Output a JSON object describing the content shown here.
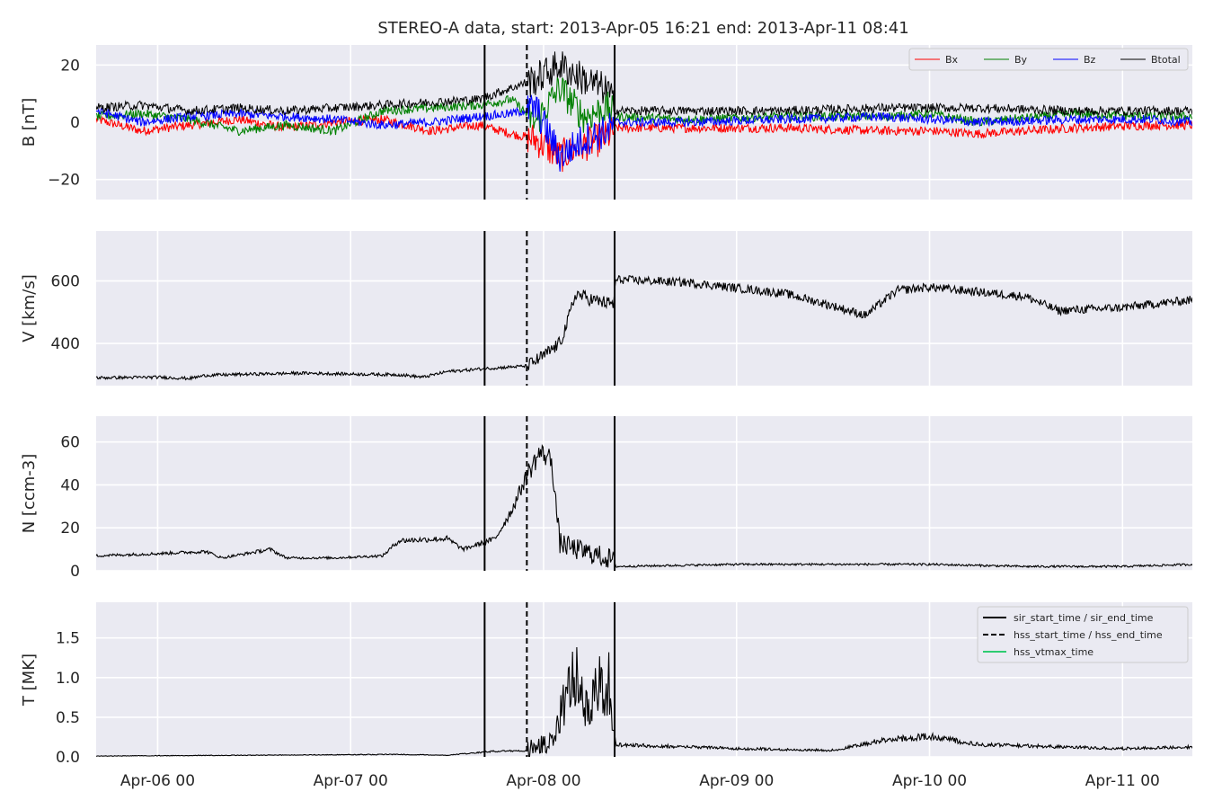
{
  "figure": {
    "title": "STEREO-A data, start: 2013-Apr-05 16:21  end: 2013-Apr-11 08:41",
    "x_start": "2013-04-05T16:21",
    "x_end": "2013-04-11T08:41",
    "x_ticks": [
      {
        "time": "2013-04-06T00:00",
        "label": "Apr-06 00"
      },
      {
        "time": "2013-04-07T00:00",
        "label": "Apr-07 00"
      },
      {
        "time": "2013-04-08T00:00",
        "label": "Apr-08 00"
      },
      {
        "time": "2013-04-09T00:00",
        "label": "Apr-09 00"
      },
      {
        "time": "2013-04-10T00:00",
        "label": "Apr-10 00"
      },
      {
        "time": "2013-04-11T00:00",
        "label": "Apr-11 00"
      }
    ],
    "event_lines": [
      {
        "time": "2013-04-07T16:40",
        "style": "solid",
        "role": "sir_start_time"
      },
      {
        "time": "2013-04-07T21:55",
        "style": "dashed",
        "role": "hss_start_time"
      },
      {
        "time": "2013-04-08T08:50",
        "style": "solid",
        "role": "sir_end_time"
      }
    ],
    "event_legend": [
      {
        "label": "sir_start_time / sir_end_time",
        "color": "#000000",
        "style": "solid"
      },
      {
        "label": "hss_start_time / hss_end_time",
        "color": "#000000",
        "style": "dashed"
      },
      {
        "label": "hss_vtmax_time",
        "color": "#2ecc71",
        "style": "solid"
      }
    ],
    "colors": {
      "background": "#eaeaf2",
      "grid": "#ffffff",
      "Bx": "#ff0000",
      "By": "#008000",
      "Bz": "#0000ff",
      "Btotal": "#000000",
      "line": "#000000"
    }
  },
  "chart_data": [
    {
      "type": "line",
      "ylabel": "B [nT]",
      "ylim": [
        -27,
        27
      ],
      "yticks": [
        {
          "v": -20,
          "label": "−20"
        },
        {
          "v": 0,
          "label": "0"
        },
        {
          "v": 20,
          "label": "20"
        }
      ],
      "legend_position": "top-right",
      "series": [
        {
          "name": "Bx",
          "color": "#ff0000",
          "points": [
            [
              "2013-04-05T16:21",
              1
            ],
            [
              "2013-04-05T22:00",
              -3
            ],
            [
              "2013-04-06T04:00",
              -1
            ],
            [
              "2013-04-06T10:00",
              1
            ],
            [
              "2013-04-06T16:00",
              -2
            ],
            [
              "2013-04-06T22:00",
              0
            ],
            [
              "2013-04-07T04:00",
              1
            ],
            [
              "2013-04-07T10:00",
              -3
            ],
            [
              "2013-04-07T16:00",
              -1
            ],
            [
              "2013-04-07T20:00",
              -4
            ],
            [
              "2013-04-07T23:00",
              -6
            ],
            [
              "2013-04-08T02:00",
              -12
            ],
            [
              "2013-04-08T05:00",
              -8
            ],
            [
              "2013-04-08T08:00",
              -5
            ],
            [
              "2013-04-08T09:00",
              -2
            ],
            [
              "2013-04-08T18:00",
              -2
            ],
            [
              "2013-04-09T06:00",
              -2
            ],
            [
              "2013-04-09T18:00",
              -3
            ],
            [
              "2013-04-10T00:00",
              -3
            ],
            [
              "2013-04-10T06:00",
              -4
            ],
            [
              "2013-04-10T18:00",
              -2
            ],
            [
              "2013-04-11T04:00",
              -1
            ],
            [
              "2013-04-11T08:41",
              -1
            ]
          ]
        },
        {
          "name": "By",
          "color": "#008000",
          "points": [
            [
              "2013-04-05T16:21",
              2
            ],
            [
              "2013-04-05T22:00",
              3
            ],
            [
              "2013-04-06T04:00",
              1
            ],
            [
              "2013-04-06T10:00",
              -3
            ],
            [
              "2013-04-06T16:00",
              -1
            ],
            [
              "2013-04-06T22:00",
              -3
            ],
            [
              "2013-04-07T04:00",
              4
            ],
            [
              "2013-04-07T10:00",
              5
            ],
            [
              "2013-04-07T16:00",
              6
            ],
            [
              "2013-04-07T20:00",
              8
            ],
            [
              "2013-04-07T23:00",
              0
            ],
            [
              "2013-04-08T02:00",
              12
            ],
            [
              "2013-04-08T05:00",
              2
            ],
            [
              "2013-04-08T08:00",
              5
            ],
            [
              "2013-04-08T09:00",
              2
            ],
            [
              "2013-04-08T18:00",
              1
            ],
            [
              "2013-04-09T06:00",
              2
            ],
            [
              "2013-04-09T18:00",
              2
            ],
            [
              "2013-04-10T00:00",
              3
            ],
            [
              "2013-04-10T06:00",
              0
            ],
            [
              "2013-04-10T18:00",
              3
            ],
            [
              "2013-04-11T04:00",
              2
            ],
            [
              "2013-04-11T08:41",
              2
            ]
          ]
        },
        {
          "name": "Bz",
          "color": "#0000ff",
          "points": [
            [
              "2013-04-05T16:21",
              4
            ],
            [
              "2013-04-05T22:00",
              0
            ],
            [
              "2013-04-06T04:00",
              2
            ],
            [
              "2013-04-06T10:00",
              3
            ],
            [
              "2013-04-06T16:00",
              2
            ],
            [
              "2013-04-06T22:00",
              1
            ],
            [
              "2013-04-07T04:00",
              -1
            ],
            [
              "2013-04-07T10:00",
              0
            ],
            [
              "2013-04-07T16:00",
              2
            ],
            [
              "2013-04-07T20:00",
              3
            ],
            [
              "2013-04-07T23:00",
              5
            ],
            [
              "2013-04-08T02:00",
              -12
            ],
            [
              "2013-04-08T05:00",
              -6
            ],
            [
              "2013-04-08T08:00",
              -3
            ],
            [
              "2013-04-08T09:00",
              0
            ],
            [
              "2013-04-08T18:00",
              0
            ],
            [
              "2013-04-09T06:00",
              1
            ],
            [
              "2013-04-09T18:00",
              2
            ],
            [
              "2013-04-10T00:00",
              1
            ],
            [
              "2013-04-10T06:00",
              0
            ],
            [
              "2013-04-10T18:00",
              1
            ],
            [
              "2013-04-11T04:00",
              1
            ],
            [
              "2013-04-11T08:41",
              0
            ]
          ]
        },
        {
          "name": "Btotal",
          "color": "#000000",
          "points": [
            [
              "2013-04-05T16:21",
              5
            ],
            [
              "2013-04-05T22:00",
              6
            ],
            [
              "2013-04-06T04:00",
              4
            ],
            [
              "2013-04-06T10:00",
              5
            ],
            [
              "2013-04-06T16:00",
              4
            ],
            [
              "2013-04-06T22:00",
              5
            ],
            [
              "2013-04-07T04:00",
              6
            ],
            [
              "2013-04-07T10:00",
              7
            ],
            [
              "2013-04-07T16:00",
              8
            ],
            [
              "2013-04-07T20:00",
              12
            ],
            [
              "2013-04-07T23:00",
              15
            ],
            [
              "2013-04-08T02:00",
              20
            ],
            [
              "2013-04-08T05:00",
              15
            ],
            [
              "2013-04-08T08:00",
              11
            ],
            [
              "2013-04-08T09:00",
              4
            ],
            [
              "2013-04-08T18:00",
              4
            ],
            [
              "2013-04-09T06:00",
              4
            ],
            [
              "2013-04-09T18:00",
              5
            ],
            [
              "2013-04-10T00:00",
              5
            ],
            [
              "2013-04-10T06:00",
              5
            ],
            [
              "2013-04-10T18:00",
              4
            ],
            [
              "2013-04-11T04:00",
              4
            ],
            [
              "2013-04-11T08:41",
              4
            ]
          ]
        }
      ]
    },
    {
      "type": "line",
      "ylabel": "V [km/s]",
      "ylim": [
        265,
        760
      ],
      "yticks": [
        {
          "v": 400,
          "label": "400"
        },
        {
          "v": 600,
          "label": "600"
        }
      ],
      "series": [
        {
          "color": "#000000",
          "points": [
            [
              "2013-04-05T16:21",
              290
            ],
            [
              "2013-04-06T00:00",
              292
            ],
            [
              "2013-04-06T04:00",
              288
            ],
            [
              "2013-04-06T06:00",
              298
            ],
            [
              "2013-04-06T12:00",
              302
            ],
            [
              "2013-04-06T18:00",
              305
            ],
            [
              "2013-04-07T00:00",
              302
            ],
            [
              "2013-04-07T06:00",
              300
            ],
            [
              "2013-04-07T09:00",
              292
            ],
            [
              "2013-04-07T12:00",
              310
            ],
            [
              "2013-04-07T16:00",
              318
            ],
            [
              "2013-04-07T20:00",
              325
            ],
            [
              "2013-04-07T22:00",
              328
            ],
            [
              "2013-04-08T00:00",
              360
            ],
            [
              "2013-04-08T02:00",
              400
            ],
            [
              "2013-04-08T03:00",
              470
            ],
            [
              "2013-04-08T04:00",
              560
            ],
            [
              "2013-04-08T06:00",
              540
            ],
            [
              "2013-04-08T08:40",
              525
            ],
            [
              "2013-04-08T09:00",
              605
            ],
            [
              "2013-04-08T18:00",
              595
            ],
            [
              "2013-04-09T06:00",
              560
            ],
            [
              "2013-04-09T12:00",
              520
            ],
            [
              "2013-04-09T16:00",
              490
            ],
            [
              "2013-04-09T20:00",
              570
            ],
            [
              "2013-04-10T00:00",
              580
            ],
            [
              "2013-04-10T06:00",
              565
            ],
            [
              "2013-04-10T12:00",
              550
            ],
            [
              "2013-04-10T16:00",
              505
            ],
            [
              "2013-04-11T00:00",
              515
            ],
            [
              "2013-04-11T08:41",
              540
            ]
          ]
        }
      ]
    },
    {
      "type": "line",
      "ylabel": "N [ccm-3]",
      "ylim": [
        0,
        72
      ],
      "yticks": [
        {
          "v": 0,
          "label": "0"
        },
        {
          "v": 20,
          "label": "20"
        },
        {
          "v": 40,
          "label": "40"
        },
        {
          "v": 60,
          "label": "60"
        }
      ],
      "series": [
        {
          "color": "#000000",
          "points": [
            [
              "2013-04-05T16:21",
              7
            ],
            [
              "2013-04-06T00:00",
              8
            ],
            [
              "2013-04-06T06:00",
              9
            ],
            [
              "2013-04-06T08:00",
              6
            ],
            [
              "2013-04-06T14:00",
              10
            ],
            [
              "2013-04-06T16:00",
              6
            ],
            [
              "2013-04-06T22:00",
              6
            ],
            [
              "2013-04-07T04:00",
              7
            ],
            [
              "2013-04-07T06:00",
              14
            ],
            [
              "2013-04-07T12:00",
              15
            ],
            [
              "2013-04-07T14:00",
              10
            ],
            [
              "2013-04-07T18:00",
              15
            ],
            [
              "2013-04-07T20:00",
              28
            ],
            [
              "2013-04-07T22:00",
              45
            ],
            [
              "2013-04-07T23:30",
              55
            ],
            [
              "2013-04-08T01:00",
              52
            ],
            [
              "2013-04-08T02:00",
              13
            ],
            [
              "2013-04-08T04:00",
              10
            ],
            [
              "2013-04-08T06:00",
              8
            ],
            [
              "2013-04-08T08:40",
              5
            ],
            [
              "2013-04-08T09:00",
              2
            ],
            [
              "2013-04-09T00:00",
              3
            ],
            [
              "2013-04-09T12:00",
              3
            ],
            [
              "2013-04-10T00:00",
              3
            ],
            [
              "2013-04-10T12:00",
              2
            ],
            [
              "2013-04-11T00:00",
              2
            ],
            [
              "2013-04-11T08:41",
              3
            ]
          ]
        }
      ]
    },
    {
      "type": "line",
      "ylabel": "T [MK]",
      "ylim": [
        0,
        1.95
      ],
      "yticks": [
        {
          "v": 0,
          "label": "0.0"
        },
        {
          "v": 0.5,
          "label": "0.5"
        },
        {
          "v": 1.0,
          "label": "1.0"
        },
        {
          "v": 1.5,
          "label": "1.5"
        }
      ],
      "legend_position": "top-right",
      "series": [
        {
          "color": "#000000",
          "points": [
            [
              "2013-04-05T16:21",
              0.01
            ],
            [
              "2013-04-06T12:00",
              0.02
            ],
            [
              "2013-04-07T06:00",
              0.03
            ],
            [
              "2013-04-07T12:00",
              0.02
            ],
            [
              "2013-04-07T18:00",
              0.07
            ],
            [
              "2013-04-07T22:00",
              0.08
            ],
            [
              "2013-04-08T01:00",
              0.15
            ],
            [
              "2013-04-08T02:30",
              0.6
            ],
            [
              "2013-04-08T04:00",
              1.0
            ],
            [
              "2013-04-08T05:30",
              0.5
            ],
            [
              "2013-04-08T07:00",
              0.9
            ],
            [
              "2013-04-08T08:40",
              0.4
            ],
            [
              "2013-04-08T09:00",
              0.15
            ],
            [
              "2013-04-09T00:00",
              0.1
            ],
            [
              "2013-04-09T12:00",
              0.08
            ],
            [
              "2013-04-09T18:00",
              0.2
            ],
            [
              "2013-04-10T00:00",
              0.25
            ],
            [
              "2013-04-10T06:00",
              0.15
            ],
            [
              "2013-04-11T00:00",
              0.1
            ],
            [
              "2013-04-11T08:41",
              0.12
            ]
          ]
        }
      ]
    }
  ]
}
